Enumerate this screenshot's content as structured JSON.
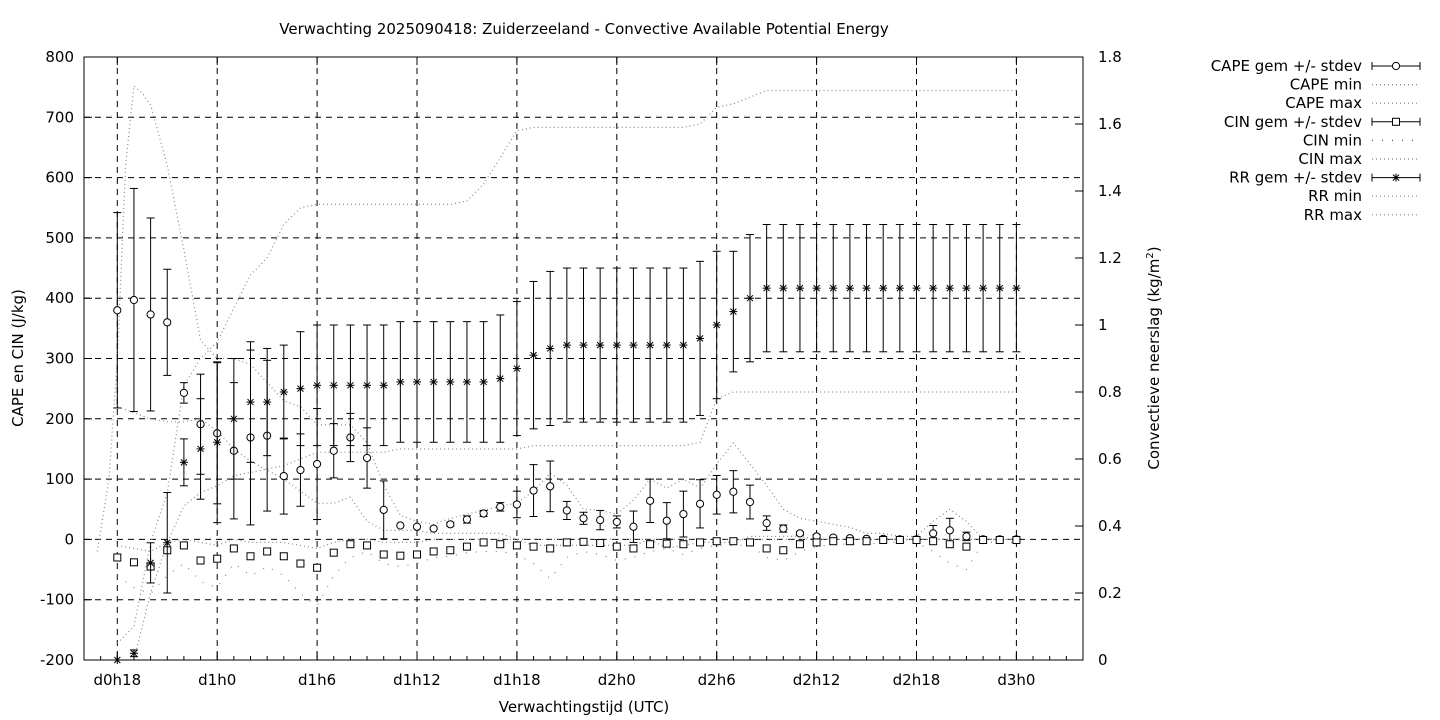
{
  "chart_data": {
    "type": "scatter",
    "title": "Verwachting 2025090418: Zuiderzeeland - Convective Available Potential Energy",
    "xlabel": "Verwachtingstijd (UTC)",
    "ylabel": "CAPE en CIN (J/kg)",
    "y2label": "Convectieve neerslag (kg/m²)",
    "y2label_main": "Convectieve neerslag (kg/m",
    "y2label_sup": "2",
    "y2label_end": ")",
    "x_range_hours": [
      16,
      76
    ],
    "ylim": [
      -200,
      800
    ],
    "y2lim": [
      0,
      1.8
    ],
    "grid": true,
    "legend_position": "top-right outside",
    "x_ticks": [
      {
        "label": "d0h18",
        "hour": 18
      },
      {
        "label": "d1h0",
        "hour": 24
      },
      {
        "label": "d1h6",
        "hour": 30
      },
      {
        "label": "d1h12",
        "hour": 36
      },
      {
        "label": "d1h18",
        "hour": 42
      },
      {
        "label": "d2h0",
        "hour": 48
      },
      {
        "label": "d2h6",
        "hour": 54
      },
      {
        "label": "d2h12",
        "hour": 60
      },
      {
        "label": "d2h18",
        "hour": 66
      },
      {
        "label": "d3h0",
        "hour": 72
      }
    ],
    "y_ticks": [
      -200,
      -100,
      0,
      100,
      200,
      300,
      400,
      500,
      600,
      700,
      800
    ],
    "y2_ticks": [
      "0",
      "0.2",
      "0.4",
      "0.6",
      "0.8",
      "1",
      "1.2",
      "1.4",
      "1.6",
      "1.8"
    ],
    "legend": [
      {
        "label": "CAPE gem +/- stdev",
        "style": "errorbar-circle"
      },
      {
        "label": "CAPE min",
        "style": "dotted"
      },
      {
        "label": "CAPE max",
        "style": "dotted"
      },
      {
        "label": "CIN gem +/- stdev",
        "style": "errorbar-square"
      },
      {
        "label": "CIN min",
        "style": "sparse-dots"
      },
      {
        "label": "CIN max",
        "style": "dotted"
      },
      {
        "label": "RR gem +/- stdev",
        "style": "errorbar-star"
      },
      {
        "label": "RR min",
        "style": "dotted"
      },
      {
        "label": "RR max",
        "style": "dotted"
      }
    ],
    "series": [
      {
        "name": "CAPE gem +/- stdev",
        "axis": "y",
        "marker": "circle",
        "x": [
          18,
          19,
          20,
          21,
          22,
          23,
          24,
          25,
          26,
          27,
          28,
          29,
          30,
          31,
          32,
          33,
          34,
          35,
          36,
          37,
          38,
          39,
          40,
          41,
          42,
          43,
          44,
          45,
          46,
          47,
          48,
          49,
          50,
          51,
          52,
          53,
          54,
          55,
          56,
          57,
          58,
          59,
          60,
          61,
          62,
          63,
          64,
          65,
          66,
          67,
          68,
          69,
          70,
          71,
          72
        ],
        "y": [
          380,
          397,
          373,
          360,
          243,
          191,
          176,
          147,
          169,
          172,
          105,
          115,
          125,
          147,
          169,
          135,
          49,
          23,
          21,
          18,
          25,
          33,
          43,
          54,
          58,
          81,
          88,
          48,
          35,
          32,
          29,
          21,
          64,
          31,
          42,
          59,
          74,
          79,
          62,
          27,
          18,
          10,
          5,
          3,
          2,
          1,
          1,
          0,
          0,
          10,
          15,
          5,
          0,
          0,
          0
        ],
        "err": [
          162,
          185,
          160,
          88,
          17,
          83,
          117,
          113,
          145,
          125,
          63,
          60,
          92,
          45,
          40,
          50,
          48,
          0,
          0,
          0,
          3,
          6,
          5,
          7,
          22,
          43,
          42,
          15,
          10,
          16,
          10,
          26,
          36,
          30,
          38,
          40,
          32,
          35,
          28,
          12,
          6,
          3,
          3,
          2,
          1,
          0,
          0,
          0,
          0,
          13,
          20,
          7,
          0,
          0,
          0
        ]
      },
      {
        "name": "CAPE min",
        "axis": "y",
        "x": [
          18,
          19,
          20,
          21,
          22,
          23,
          24,
          25,
          26,
          27,
          28,
          29,
          30,
          31,
          32,
          33,
          34,
          35,
          36,
          37,
          38,
          39,
          40,
          41,
          42,
          43,
          44,
          45,
          46,
          47,
          48,
          49,
          50,
          51,
          52,
          53,
          54,
          55,
          56,
          57,
          58,
          59,
          60,
          61,
          62,
          63,
          64,
          65,
          66,
          67,
          68,
          69,
          70,
          71,
          72
        ],
        "y": [
          220,
          210,
          200,
          195,
          195,
          200,
          180,
          150,
          130,
          115,
          100,
          80,
          60,
          60,
          70,
          30,
          15,
          15,
          15,
          10,
          10,
          10,
          10,
          10,
          0,
          -10,
          -10,
          -10,
          -10,
          -10,
          -10,
          -10,
          0,
          -15,
          -10,
          -5,
          -5,
          -5,
          5,
          5,
          5,
          5,
          0,
          0,
          0,
          0,
          0,
          0,
          0,
          0,
          0,
          0,
          0,
          0,
          0
        ]
      },
      {
        "name": "CAPE max",
        "axis": "y",
        "x": [
          16.8,
          17.5,
          18,
          18.5,
          19,
          19.5,
          20,
          21,
          22,
          23,
          24,
          25,
          26,
          27,
          28,
          29,
          30,
          31,
          32,
          33,
          34,
          35,
          36,
          37,
          38,
          39,
          40,
          41,
          42,
          43,
          44,
          45,
          46,
          47,
          48,
          49,
          50,
          51,
          52,
          53,
          54,
          55,
          56,
          57,
          58,
          59,
          60,
          61,
          62,
          63,
          64,
          65,
          66,
          67,
          68,
          69,
          70,
          71,
          72
        ],
        "y": [
          -20,
          100,
          300,
          620,
          752,
          740,
          720,
          620,
          480,
          330,
          300,
          300,
          290,
          260,
          230,
          220,
          190,
          190,
          190,
          160,
          90,
          40,
          30,
          25,
          35,
          42,
          48,
          55,
          60,
          80,
          110,
          90,
          50,
          48,
          42,
          65,
          100,
          85,
          100,
          85,
          125,
          160,
          125,
          90,
          50,
          35,
          30,
          25,
          20,
          10,
          10,
          5,
          5,
          30,
          50,
          30,
          0,
          0,
          0
        ]
      },
      {
        "name": "CIN gem +/- stdev",
        "axis": "y",
        "marker": "square",
        "x": [
          18,
          19,
          20,
          21,
          22,
          23,
          24,
          25,
          26,
          27,
          28,
          29,
          30,
          31,
          32,
          33,
          34,
          35,
          36,
          37,
          38,
          39,
          40,
          41,
          42,
          43,
          44,
          45,
          46,
          47,
          48,
          49,
          50,
          51,
          52,
          53,
          54,
          55,
          56,
          57,
          58,
          59,
          60,
          61,
          62,
          63,
          64,
          65,
          66,
          67,
          68,
          69,
          70,
          71,
          72
        ],
        "y": [
          -30,
          -38,
          -45,
          -18,
          -10,
          -35,
          -32,
          -15,
          -28,
          -20,
          -28,
          -40,
          -47,
          -22,
          -8,
          -10,
          -25,
          -27,
          -25,
          -20,
          -18,
          -12,
          -5,
          -8,
          -10,
          -12,
          -15,
          -5,
          -4,
          -6,
          -12,
          -15,
          -8,
          -7,
          -8,
          -5,
          -3,
          -3,
          -5,
          -15,
          -18,
          -8,
          -5,
          -3,
          -3,
          -3,
          -1,
          -1,
          -1,
          -3,
          -8,
          -12,
          -1,
          -1,
          -1
        ]
      },
      {
        "name": "CIN min",
        "axis": "y",
        "x": [
          18,
          19,
          20,
          21,
          22,
          23,
          24,
          25,
          26,
          27,
          28,
          29,
          30,
          31,
          32,
          33,
          34,
          35,
          36,
          37,
          38,
          39,
          40,
          41,
          42,
          43,
          44,
          45,
          46,
          47,
          48,
          49,
          50,
          51,
          52,
          53,
          54,
          55,
          56,
          57,
          58,
          59,
          60,
          61,
          62,
          63,
          64,
          65,
          66,
          67,
          68,
          69,
          70,
          71,
          72
        ],
        "y": [
          -60,
          -80,
          -90,
          -60,
          -40,
          -70,
          -80,
          -40,
          -60,
          -45,
          -60,
          -90,
          -110,
          -60,
          -30,
          -20,
          -40,
          -45,
          -40,
          -30,
          -28,
          -22,
          -20,
          -20,
          -25,
          -40,
          -65,
          -30,
          -20,
          -25,
          -35,
          -30,
          -20,
          -15,
          -25,
          -15,
          -10,
          -10,
          -10,
          -30,
          -35,
          -20,
          -12,
          -8,
          -8,
          -8,
          -5,
          -5,
          -5,
          -20,
          -40,
          -50,
          -5,
          -5,
          -5
        ]
      },
      {
        "name": "CIN max",
        "axis": "y",
        "x": [
          18,
          19,
          20,
          21,
          22,
          23,
          24,
          25,
          26,
          27,
          28,
          29,
          30,
          31,
          32,
          33,
          34,
          35,
          36,
          37,
          38,
          39,
          40,
          41,
          42,
          43,
          44,
          45,
          46,
          47,
          48,
          49,
          50,
          51,
          52,
          53,
          54,
          55,
          56,
          57,
          58,
          59,
          60,
          61,
          62,
          63,
          64,
          65,
          66,
          67,
          68,
          69,
          70,
          71,
          72
        ],
        "y": [
          -10,
          -15,
          -20,
          -5,
          0,
          -5,
          -10,
          0,
          -5,
          -5,
          -5,
          -10,
          -15,
          -5,
          0,
          0,
          -5,
          -5,
          -5,
          0,
          0,
          0,
          0,
          0,
          0,
          0,
          0,
          0,
          0,
          0,
          0,
          0,
          0,
          0,
          0,
          0,
          0,
          0,
          0,
          0,
          0,
          0,
          0,
          0,
          0,
          0,
          0,
          0,
          0,
          0,
          0,
          0,
          0,
          0,
          0
        ]
      },
      {
        "name": "RR gem +/- stdev",
        "axis": "y2",
        "marker": "star",
        "x": [
          18,
          19,
          20,
          21,
          22,
          23,
          24,
          25,
          26,
          27,
          28,
          29,
          30,
          31,
          32,
          33,
          34,
          35,
          36,
          37,
          38,
          39,
          40,
          41,
          42,
          43,
          44,
          45,
          46,
          47,
          48,
          49,
          50,
          51,
          52,
          53,
          54,
          55,
          56,
          57,
          58,
          59,
          60,
          61,
          62,
          63,
          64,
          65,
          66,
          67,
          68,
          69,
          70,
          71,
          72
        ],
        "y": [
          0.0,
          0.02,
          0.29,
          0.35,
          0.59,
          0.63,
          0.65,
          0.72,
          0.77,
          0.77,
          0.8,
          0.81,
          0.82,
          0.82,
          0.82,
          0.82,
          0.82,
          0.83,
          0.83,
          0.83,
          0.83,
          0.83,
          0.83,
          0.84,
          0.87,
          0.91,
          0.93,
          0.94,
          0.94,
          0.94,
          0.94,
          0.94,
          0.94,
          0.94,
          0.94,
          0.96,
          1.0,
          1.04,
          1.08,
          1.11,
          1.11,
          1.11,
          1.11,
          1.11,
          1.11,
          1.11,
          1.11,
          1.11,
          1.11,
          1.11,
          1.11,
          1.11,
          1.11,
          1.11,
          1.11
        ],
        "err": [
          0,
          0.01,
          0.06,
          0.15,
          0.07,
          0.15,
          0.24,
          0.18,
          0.18,
          0.16,
          0.14,
          0.17,
          0.18,
          0.18,
          0.18,
          0.18,
          0.18,
          0.18,
          0.18,
          0.18,
          0.18,
          0.18,
          0.18,
          0.19,
          0.2,
          0.22,
          0.23,
          0.23,
          0.23,
          0.23,
          0.23,
          0.23,
          0.23,
          0.23,
          0.23,
          0.23,
          0.22,
          0.18,
          0.19,
          0.19,
          0.19,
          0.19,
          0.19,
          0.19,
          0.19,
          0.19,
          0.19,
          0.19,
          0.19,
          0.19,
          0.19,
          0.19,
          0.19,
          0.19,
          0.19
        ]
      },
      {
        "name": "RR min",
        "axis": "y2",
        "x": [
          18,
          19,
          20,
          21,
          22,
          23,
          24,
          25,
          26,
          27,
          28,
          29,
          30,
          31,
          32,
          33,
          34,
          35,
          36,
          37,
          38,
          39,
          40,
          41,
          42,
          43,
          44,
          45,
          46,
          47,
          48,
          49,
          50,
          51,
          52,
          53,
          54,
          55,
          56,
          57,
          58,
          59,
          60,
          61,
          62,
          63,
          64,
          65,
          66,
          67,
          68,
          69,
          70,
          71,
          72
        ],
        "y": [
          0,
          0,
          0.2,
          0.35,
          0.46,
          0.5,
          0.52,
          0.55,
          0.56,
          0.57,
          0.58,
          0.6,
          0.62,
          0.62,
          0.62,
          0.62,
          0.62,
          0.63,
          0.63,
          0.63,
          0.63,
          0.63,
          0.63,
          0.63,
          0.63,
          0.64,
          0.64,
          0.64,
          0.64,
          0.64,
          0.64,
          0.64,
          0.64,
          0.64,
          0.64,
          0.65,
          0.78,
          0.8,
          0.8,
          0.8,
          0.8,
          0.8,
          0.8,
          0.8,
          0.8,
          0.8,
          0.8,
          0.8,
          0.8,
          0.8,
          0.8,
          0.8,
          0.8,
          0.8,
          0.8
        ]
      },
      {
        "name": "RR max",
        "axis": "y2",
        "x": [
          18,
          19,
          20,
          21,
          22,
          23,
          24,
          25,
          26,
          27,
          28,
          29,
          30,
          31,
          32,
          33,
          34,
          35,
          36,
          37,
          38,
          39,
          40,
          41,
          42,
          43,
          44,
          45,
          46,
          47,
          48,
          49,
          50,
          51,
          52,
          53,
          54,
          55,
          56,
          57,
          58,
          59,
          60,
          61,
          62,
          63,
          64,
          65,
          66,
          67,
          68,
          69,
          70,
          71,
          72
        ],
        "y": [
          0.05,
          0.1,
          0.35,
          0.5,
          0.82,
          0.9,
          0.95,
          1.05,
          1.15,
          1.2,
          1.3,
          1.35,
          1.36,
          1.36,
          1.36,
          1.36,
          1.36,
          1.36,
          1.36,
          1.36,
          1.36,
          1.37,
          1.42,
          1.5,
          1.58,
          1.59,
          1.59,
          1.59,
          1.59,
          1.59,
          1.59,
          1.59,
          1.59,
          1.59,
          1.59,
          1.6,
          1.65,
          1.66,
          1.68,
          1.7,
          1.7,
          1.7,
          1.7,
          1.7,
          1.7,
          1.7,
          1.7,
          1.7,
          1.7,
          1.7,
          1.7,
          1.7,
          1.7,
          1.7,
          1.7
        ]
      }
    ]
  }
}
